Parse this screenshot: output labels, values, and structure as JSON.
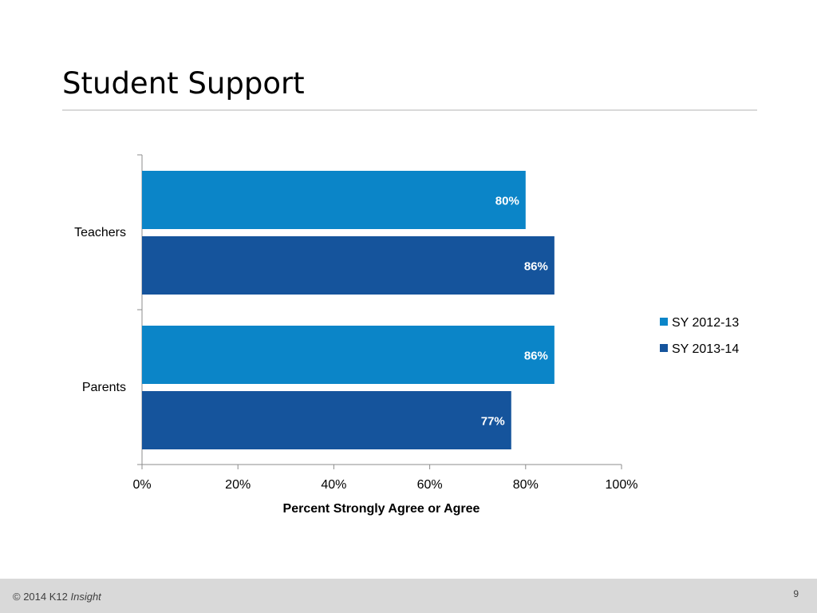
{
  "slide": {
    "title": "Student Support"
  },
  "footer": {
    "copyright": "© 2014 K12",
    "brand_word": "Insight",
    "page_number": "9"
  },
  "colors": {
    "series_2012": "#0b85c8",
    "series_2013": "#15549c",
    "axis": "#8c8c8c"
  },
  "chart_data": {
    "type": "bar",
    "orientation": "horizontal",
    "categories": [
      "Teachers",
      "Parents"
    ],
    "series": [
      {
        "name": "SY 2012-13",
        "values": [
          80,
          86
        ],
        "labels": [
          "80%",
          "86%"
        ]
      },
      {
        "name": "SY 2013-14",
        "values": [
          86,
          77
        ],
        "labels": [
          "86%",
          "77%"
        ]
      }
    ],
    "xlabel": "Percent Strongly Agree or Agree",
    "xlim": [
      0,
      100
    ],
    "xticks": [
      0,
      20,
      40,
      60,
      80,
      100
    ],
    "xtick_labels": [
      "0%",
      "20%",
      "40%",
      "60%",
      "80%",
      "100%"
    ],
    "legend_position": "right",
    "grid": false
  }
}
